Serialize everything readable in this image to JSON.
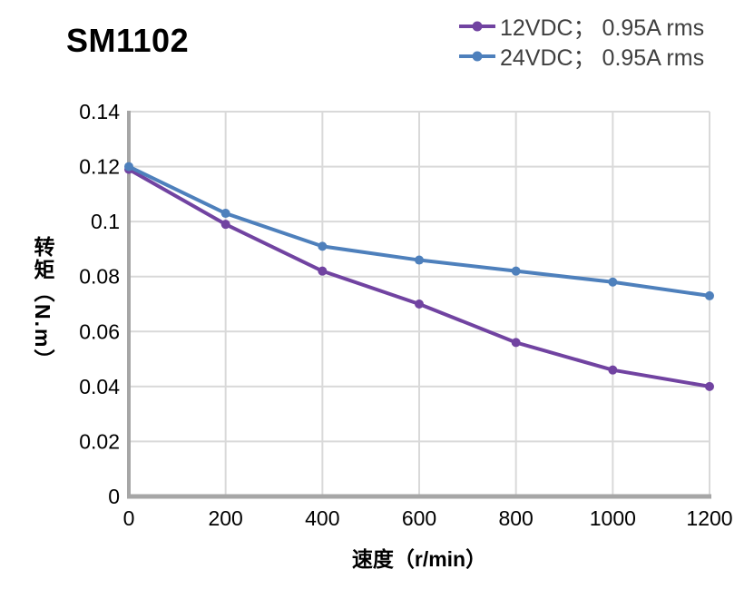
{
  "page": {
    "title": "SM1102"
  },
  "legend": {
    "items": [
      {
        "label": "12VDC；  0.95A rms",
        "color": "#7143a1"
      },
      {
        "label": "24VDC；  0.95A rms",
        "color": "#4e80bc"
      }
    ]
  },
  "chart_data": {
    "type": "line",
    "title": "SM1102",
    "x": [
      0,
      200,
      400,
      600,
      800,
      1000,
      1200
    ],
    "series": [
      {
        "name": "12VDC；  0.95A rms",
        "color": "#7143a1",
        "values": [
          0.119,
          0.099,
          0.082,
          0.07,
          0.056,
          0.046,
          0.04
        ]
      },
      {
        "name": "24VDC；  0.95A rms",
        "color": "#4e80bc",
        "values": [
          0.12,
          0.103,
          0.091,
          0.086,
          0.082,
          0.078,
          0.073
        ]
      }
    ],
    "xlabel": "速度（r/min）",
    "ylabel": "转矩（N.m）",
    "xlim": [
      0,
      1200
    ],
    "ylim": [
      0,
      0.14
    ],
    "xticks": {
      "values": [
        0,
        200,
        400,
        600,
        800,
        1000,
        1200
      ],
      "labels": [
        "0",
        "200",
        "400",
        "600",
        "800",
        "1000",
        "1200"
      ]
    },
    "yticks": {
      "values": [
        0,
        0.02,
        0.04,
        0.06,
        0.08,
        0.1,
        0.12,
        0.14
      ],
      "labels": [
        "0",
        "0.02",
        "0.04",
        "0.06",
        "0.08",
        "0.1",
        "0.12",
        "0.14"
      ]
    },
    "grid": true,
    "legend_position": "top-right",
    "marker": "circle",
    "colors": {
      "gridline": "#d9d9d9",
      "axis": "#a6a6a6",
      "tick_text": "#000000",
      "legend_text": "#3f3f3f",
      "background": "#ffffff"
    }
  }
}
